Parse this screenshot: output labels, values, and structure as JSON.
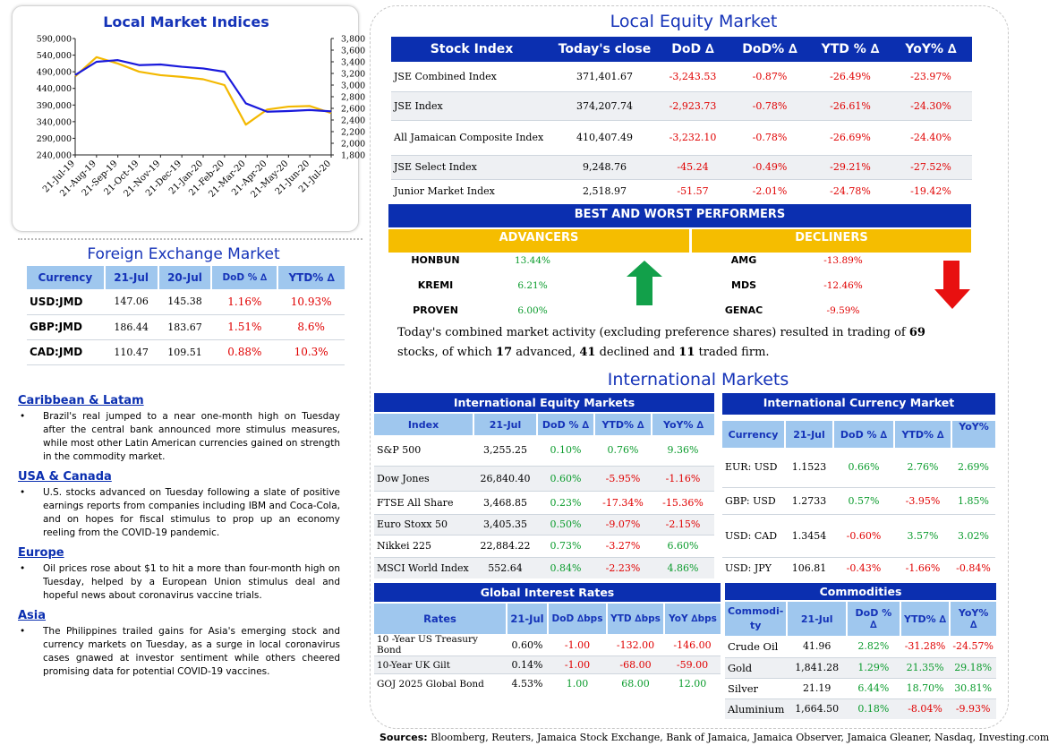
{
  "indices_chart": {
    "title": "Local Market Indices",
    "left_ticks": [
      "590,000",
      "540,000",
      "490,000",
      "440,000",
      "390,000",
      "340,000",
      "290,000",
      "240,000"
    ],
    "right_ticks": [
      "3,800",
      "3,600",
      "3,400",
      "3,200",
      "3,000",
      "2,800",
      "2,600",
      "2,400",
      "2,200",
      "2,000",
      "1,800"
    ],
    "x_ticks": [
      "21-Jul-19",
      "21-Aug-19",
      "21-Sep-19",
      "21-Oct-19",
      "21-Nov-19",
      "21-Dec-19",
      "21-Jan-20",
      "21-Feb-20",
      "21-Mar-20",
      "21-Apr-20",
      "21-May-20",
      "21-Jun-20",
      "21-Jul-20"
    ],
    "colors": {
      "blue_series": "#1a1adc",
      "yellow_series": "#f3b800"
    }
  },
  "chart_data": {
    "type": "line",
    "x": [
      "21-Jul-19",
      "21-Aug-19",
      "21-Sep-19",
      "21-Oct-19",
      "21-Nov-19",
      "21-Dec-19",
      "21-Jan-20",
      "21-Feb-20",
      "21-Mar-20",
      "21-Apr-20",
      "21-May-20",
      "21-Jun-20",
      "21-Jul-20"
    ],
    "series": [
      {
        "axis": "left",
        "values": [
          480000,
          520000,
          525000,
          510000,
          512000,
          505000,
          500000,
          490000,
          395000,
          370000,
          372000,
          375000,
          371000
        ]
      },
      {
        "axis": "right",
        "values": [
          3150,
          3480,
          3370,
          3230,
          3170,
          3140,
          3100,
          3000,
          2320,
          2580,
          2630,
          2640,
          2519
        ]
      }
    ],
    "ylim_left": [
      240000,
      590000
    ],
    "ylim_right": [
      1800,
      3800
    ]
  },
  "fx": {
    "title": "Foreign Exchange Market",
    "headers": [
      "Currency",
      "21-Jul",
      "20-Jul",
      "DoD % ∆",
      "YTD% ∆"
    ],
    "rows": [
      {
        "c": "USD:JMD",
        "a": "147.06",
        "b": "145.38",
        "d": "1.16%",
        "y": "10.93%"
      },
      {
        "c": "GBP:JMD",
        "a": "186.44",
        "b": "183.67",
        "d": "1.51%",
        "y": "8.6%"
      },
      {
        "c": "CAD:JMD",
        "a": "110.47",
        "b": "109.51",
        "d": "0.88%",
        "y": "10.3%"
      }
    ]
  },
  "news": [
    {
      "head": "Caribbean & Latam",
      "text": "Brazil's real jumped to a near one-month high on Tuesday after the central bank announced more stimulus measures, while most other Latin American currencies gained on strength in the commodity market."
    },
    {
      "head": "USA & Canada",
      "text": "U.S. stocks advanced on Tuesday following a slate of positive earnings reports from companies including IBM and Coca-Cola, and on hopes for fiscal stimulus to prop up an economy reeling from the COVID-19 pandemic."
    },
    {
      "head": "Europe",
      "text": "Oil prices rose about $1 to hit a more than four-month high on Tuesday, helped by a European Union stimulus deal and hopeful news about coronavirus vaccine trials."
    },
    {
      "head": "Asia",
      "text": "The Philippines trailed gains for Asia's emerging stock and currency markets on Tuesday, as a surge in local coronavirus cases gnawed at investor sentiment while others cheered promising data for potential COVID-19 vaccines."
    }
  ],
  "equity": {
    "title": "Local Equity Market",
    "headers": [
      "Stock Index",
      "Today's close",
      "DoD  ∆",
      "DoD% ∆",
      "YTD % ∆",
      "YoY% ∆"
    ],
    "rows": [
      {
        "n": "JSE Combined Index",
        "c": "371,401.67",
        "d": "-3,243.53",
        "dp": "-0.87%",
        "y": "-26.49%",
        "yy": "-23.97%"
      },
      {
        "n": "JSE Index",
        "c": "374,207.74",
        "d": "-2,923.73",
        "dp": "-0.78%",
        "y": "-26.61%",
        "yy": "-24.30%"
      },
      {
        "n": "All Jamaican Composite Index",
        "c": "410,407.49",
        "d": "-3,232.10",
        "dp": "-0.78%",
        "y": "-26.69%",
        "yy": "-24.40%"
      },
      {
        "n": "JSE Select Index",
        "c": "9,248.76",
        "d": "-45.24",
        "dp": "-0.49%",
        "y": "-29.21%",
        "yy": "-27.52%"
      },
      {
        "n": "Junior Market Index",
        "c": "2,518.97",
        "d": "-51.57",
        "dp": "-2.01%",
        "y": "-24.78%",
        "yy": "-19.42%"
      }
    ]
  },
  "performers": {
    "title": "BEST AND WORST PERFORMERS",
    "adv_label": "ADVANCERS",
    "dec_label": "DECLINERS",
    "advancers": [
      {
        "n": "HONBUN",
        "v": "13.44%"
      },
      {
        "n": "KREMI",
        "v": "6.21%"
      },
      {
        "n": "PROVEN",
        "v": "6.00%"
      }
    ],
    "decliners": [
      {
        "n": "AMG",
        "v": "-13.89%"
      },
      {
        "n": "MDS",
        "v": "-12.46%"
      },
      {
        "n": "GENAC",
        "v": "-9.59%"
      }
    ]
  },
  "summary": {
    "p1": "Today's combined market activity (excluding preference shares) resulted in trading of ",
    "n1": "69",
    "p2": " stocks, of which ",
    "n2": "17",
    "p3": " advanced, ",
    "n3": "41",
    "p4": " declined and ",
    "n4": "11",
    "p5": " traded firm."
  },
  "intl_title": "International Markets",
  "intl_equity": {
    "title": "International Equity Markets",
    "headers": [
      "Index",
      "21-Jul",
      "DoD % ∆",
      "YTD% ∆",
      "YoY% ∆"
    ],
    "rows": [
      {
        "n": "S&P 500",
        "v": "3,255.25",
        "d": "0.10%",
        "y": "0.76%",
        "yy": "9.36%"
      },
      {
        "n": "Dow Jones",
        "v": "26,840.40",
        "d": "0.60%",
        "y": "-5.95%",
        "yy": "-1.16%"
      },
      {
        "n": "FTSE All Share",
        "v": "3,468.85",
        "d": "0.23%",
        "y": "-17.34%",
        "yy": "-15.36%"
      },
      {
        "n": "Euro Stoxx 50",
        "v": "3,405.35",
        "d": "0.50%",
        "y": "-9.07%",
        "yy": "-2.15%"
      },
      {
        "n": "Nikkei 225",
        "v": "22,884.22",
        "d": "0.73%",
        "y": "-3.27%",
        "yy": "6.60%"
      },
      {
        "n": "MSCI World Index",
        "v": "552.64",
        "d": "0.84%",
        "y": "-2.23%",
        "yy": "4.86%"
      }
    ]
  },
  "intl_currency": {
    "title": "International Currency Market",
    "headers": [
      "Currency",
      "21-Jul",
      "DoD % ∆",
      "YTD% ∆",
      "YoY%"
    ],
    "rows": [
      {
        "n": "EUR: USD",
        "v": "1.1523",
        "d": "0.66%",
        "y": "2.76%",
        "yy": "2.69%"
      },
      {
        "n": "GBP: USD",
        "v": "1.2733",
        "d": "0.57%",
        "y": "-3.95%",
        "yy": "1.85%"
      },
      {
        "n": "USD: CAD",
        "v": "1.3454",
        "d": "-0.60%",
        "y": "3.57%",
        "yy": "3.02%"
      },
      {
        "n": "USD: JPY",
        "v": "106.81",
        "d": "-0.43%",
        "y": "-1.66%",
        "yy": "-0.84%"
      }
    ]
  },
  "rates": {
    "title": "Global Interest Rates",
    "headers": [
      "Rates",
      "21-Jul",
      "DoD ∆bps",
      "YTD ∆bps",
      "YoY ∆bps"
    ],
    "rows": [
      {
        "n": "10 -Year US Treasury Bond",
        "v": "0.60%",
        "d": "-1.00",
        "y": "-132.00",
        "yy": "-146.00"
      },
      {
        "n": "10-Year UK Gilt",
        "v": "0.14%",
        "d": "-1.00",
        "y": "-68.00",
        "yy": "-59.00"
      },
      {
        "n": "GOJ 2025 Global Bond",
        "v": "4.53%",
        "d": "1.00",
        "y": "68.00",
        "yy": "12.00"
      }
    ]
  },
  "commodities": {
    "title": "Commodities",
    "headers": [
      "Commodi-ty",
      "21-Jul",
      "DoD % ∆",
      "YTD% ∆",
      "YoY% ∆"
    ],
    "rows": [
      {
        "n": "Crude Oil",
        "v": "41.96",
        "d": "2.82%",
        "y": "-31.28%",
        "yy": "-24.57%"
      },
      {
        "n": "Gold",
        "v": "1,841.28",
        "d": "1.29%",
        "y": "21.35%",
        "yy": "29.18%"
      },
      {
        "n": "Silver",
        "v": "21.19",
        "d": "6.44%",
        "y": "18.70%",
        "yy": "30.81%"
      },
      {
        "n": "Aluminium",
        "v": "1,664.50",
        "d": "0.18%",
        "y": "-8.04%",
        "yy": "-9.93%"
      }
    ]
  },
  "sources": {
    "label": "Sources:",
    "text": " Bloomberg, Reuters, Jamaica Stock Exchange, Bank of Jamaica, Jamaica Observer, Jamaica Gleaner, Nasdaq, Investing.com"
  }
}
